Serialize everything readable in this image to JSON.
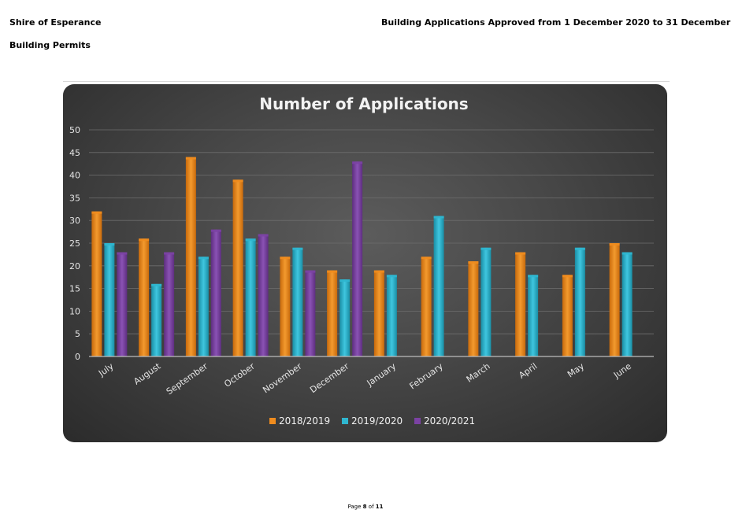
{
  "header": {
    "org": "Shire of Esperance",
    "subtitle": "Building Permits",
    "title": "Building Applications Approved from 1 December 2020 to 31 December"
  },
  "footer": {
    "page_label": "Page",
    "page_num": "8",
    "of_label": "of",
    "page_total": "11"
  },
  "colors": {
    "s2018": "#f08c1e",
    "s2019": "#2fb6cf",
    "s2020": "#7b42a3"
  },
  "chart_data": {
    "type": "bar",
    "title": "Number of Applications",
    "xlabel": "",
    "ylabel": "",
    "ylim": [
      0,
      50
    ],
    "yticks": [
      0,
      5,
      10,
      15,
      20,
      25,
      30,
      35,
      40,
      45,
      50
    ],
    "grid": true,
    "legend_position": "bottom",
    "categories": [
      "July",
      "August",
      "September",
      "October",
      "November",
      "December",
      "January",
      "February",
      "March",
      "April",
      "May",
      "June"
    ],
    "series": [
      {
        "name": "2018/2019",
        "values": [
          32,
          26,
          44,
          39,
          22,
          19,
          19,
          22,
          21,
          23,
          18,
          25
        ]
      },
      {
        "name": "2019/2020",
        "values": [
          25,
          16,
          22,
          26,
          24,
          17,
          18,
          31,
          24,
          18,
          24,
          23
        ]
      },
      {
        "name": "2020/2021",
        "values": [
          23,
          23,
          28,
          27,
          19,
          43,
          null,
          null,
          null,
          null,
          null,
          null
        ]
      }
    ]
  }
}
